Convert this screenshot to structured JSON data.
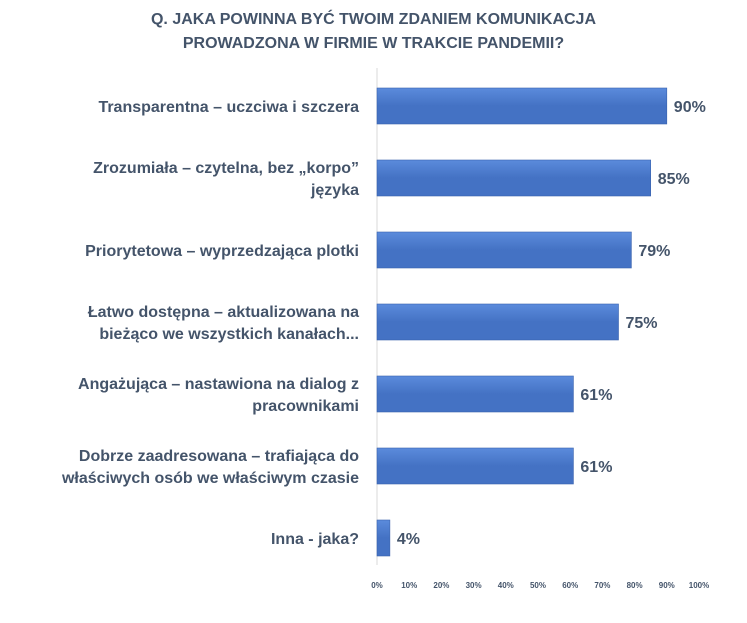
{
  "chart_data": {
    "type": "bar",
    "orientation": "horizontal",
    "title_lines": [
      "Q. JAKA POWINNA BYĆ TWOIM ZDANIEM KOMUNIKACJA",
      "PROWADZONA W FIRMIE W TRAKCIE PANDEMII?"
    ],
    "categories": [
      [
        "Transparentna – uczciwa i szczera"
      ],
      [
        "Zrozumiała – czytelna, bez „korpo”",
        "języka"
      ],
      [
        "Priorytetowa – wyprzedzająca plotki"
      ],
      [
        "Łatwo dostępna – aktualizowana na",
        "bieżąco we wszystkich kanałach..."
      ],
      [
        "Angażująca – nastawiona na dialog z",
        "pracownikami"
      ],
      [
        "Dobrze zaadresowana – trafiająca do",
        "właściwych osób we właściwym czasie"
      ],
      [
        "Inna - jaka?"
      ]
    ],
    "values": [
      90,
      85,
      79,
      75,
      61,
      61,
      4
    ],
    "data_labels": [
      "90%",
      "85%",
      "79%",
      "75%",
      "61%",
      "61%",
      "4%"
    ],
    "xlim": [
      0,
      100
    ],
    "x_ticks": [
      0,
      10,
      20,
      30,
      40,
      50,
      60,
      70,
      80,
      90,
      100
    ],
    "x_tick_labels": [
      "0%",
      "10%",
      "20%",
      "30%",
      "40%",
      "50%",
      "60%",
      "70%",
      "80%",
      "90%",
      "100%"
    ],
    "grid": false,
    "bar_color": "#4472C4",
    "bar_gradient_light": "#5B8BDC",
    "text_color": "#44546A",
    "axis_color": "#D9D9D9"
  }
}
